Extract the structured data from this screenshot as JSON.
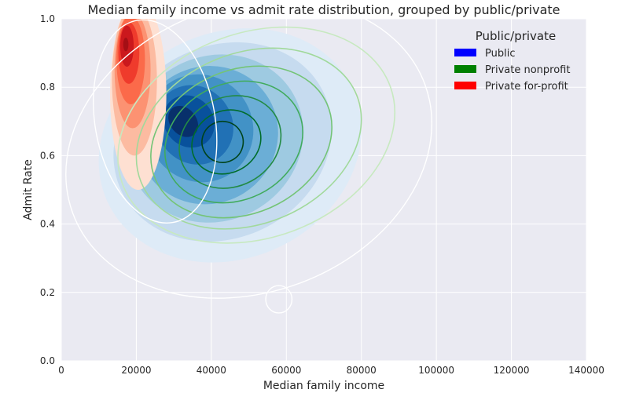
{
  "chart_data": {
    "type": "kde-contour",
    "title": "Median family income vs admit rate distribution, grouped by public/private",
    "xlabel": "Median family income",
    "ylabel": "Admit Rate",
    "xlim": [
      0,
      140000
    ],
    "ylim": [
      0.0,
      1.0
    ],
    "x_ticks": [
      0,
      20000,
      40000,
      60000,
      80000,
      100000,
      120000,
      140000
    ],
    "y_ticks": [
      0.0,
      0.2,
      0.4,
      0.6,
      0.8,
      1.0
    ],
    "x_tick_labels": [
      "0",
      "20000",
      "40000",
      "60000",
      "80000",
      "100000",
      "120000",
      "140000"
    ],
    "y_tick_labels": [
      "0.0",
      "0.2",
      "0.4",
      "0.6",
      "0.8",
      "1.0"
    ],
    "grid": true,
    "legend": {
      "title": "Public/private",
      "placement": "top-right",
      "entries": [
        {
          "label": "Public",
          "color": "#0000ff"
        },
        {
          "label": "Private nonprofit",
          "color": "#008000"
        },
        {
          "label": "Private for-profit",
          "color": "#ff0000"
        }
      ]
    },
    "series": [
      {
        "name": "Public",
        "style": "filled",
        "palette": [
          "#deebf7",
          "#c6dbef",
          "#9ecae1",
          "#6baed6",
          "#4292c6",
          "#2171b5",
          "#08519c",
          "#08306b"
        ],
        "levels": [
          {
            "cx": 45000,
            "cy": 0.63,
            "rx": 36000,
            "ry": 0.33,
            "rot": -25
          },
          {
            "cx": 43000,
            "cy": 0.64,
            "rx": 30000,
            "ry": 0.28,
            "rot": -28
          },
          {
            "cx": 41000,
            "cy": 0.65,
            "rx": 24000,
            "ry": 0.24,
            "rot": -30
          },
          {
            "cx": 39000,
            "cy": 0.66,
            "rx": 19000,
            "ry": 0.2,
            "rot": -32
          },
          {
            "cx": 37000,
            "cy": 0.68,
            "rx": 14000,
            "ry": 0.16,
            "rot": -35
          },
          {
            "cx": 35500,
            "cy": 0.69,
            "rx": 10000,
            "ry": 0.12,
            "rot": -38
          },
          {
            "cx": 34000,
            "cy": 0.7,
            "rx": 6500,
            "ry": 0.08,
            "rot": -40
          },
          {
            "cx": 32500,
            "cy": 0.7,
            "rx": 3500,
            "ry": 0.05,
            "rot": -40
          }
        ]
      },
      {
        "name": "Private nonprofit",
        "style": "lines",
        "palette": [
          "#c7e9c0",
          "#a1d99b",
          "#74c476",
          "#41ab5d",
          "#238b45",
          "#006d2c",
          "#00441b"
        ],
        "levels": [
          {
            "cx": 52000,
            "cy": 0.66,
            "rx": 38000,
            "ry": 0.3,
            "rot": -20
          },
          {
            "cx": 50000,
            "cy": 0.65,
            "rx": 31000,
            "ry": 0.25,
            "rot": -22
          },
          {
            "cx": 48000,
            "cy": 0.64,
            "rx": 25000,
            "ry": 0.21,
            "rot": -24
          },
          {
            "cx": 46000,
            "cy": 0.64,
            "rx": 19000,
            "ry": 0.17,
            "rot": -26
          },
          {
            "cx": 45000,
            "cy": 0.64,
            "rx": 14000,
            "ry": 0.13,
            "rot": -28
          },
          {
            "cx": 44000,
            "cy": 0.64,
            "rx": 9500,
            "ry": 0.09,
            "rot": -30
          },
          {
            "cx": 43000,
            "cy": 0.64,
            "rx": 5500,
            "ry": 0.06,
            "rot": -30
          }
        ]
      },
      {
        "name": "Private for-profit",
        "style": "filled",
        "palette": [
          "#fee0d2",
          "#fcbba1",
          "#fc9272",
          "#fb6a4a",
          "#ef3b2c",
          "#cb181d",
          "#a50f15"
        ],
        "levels": [
          {
            "cx": 20500,
            "cy": 0.78,
            "rx": 7500,
            "ry": 0.28,
            "rot": 0
          },
          {
            "cx": 19500,
            "cy": 0.82,
            "rx": 6000,
            "ry": 0.22,
            "rot": 0
          },
          {
            "cx": 19000,
            "cy": 0.85,
            "rx": 4800,
            "ry": 0.17,
            "rot": 0
          },
          {
            "cx": 18500,
            "cy": 0.88,
            "rx": 3800,
            "ry": 0.13,
            "rot": 0
          },
          {
            "cx": 18000,
            "cy": 0.9,
            "rx": 2800,
            "ry": 0.09,
            "rot": 0
          },
          {
            "cx": 17500,
            "cy": 0.92,
            "rx": 1800,
            "ry": 0.06,
            "rot": 0
          },
          {
            "cx": 17200,
            "cy": 0.925,
            "rx": 700,
            "ry": 0.02,
            "rot": 0
          }
        ]
      },
      {
        "name": "",
        "style": "outline",
        "palette": [
          "#ffffff"
        ],
        "levels": [
          {
            "cx": 50000,
            "cy": 0.62,
            "rx": 50000,
            "ry": 0.42,
            "rot": -20
          },
          {
            "cx": 58000,
            "cy": 0.18,
            "rx": 3500,
            "ry": 0.04,
            "rot": 0
          },
          {
            "cx": 25000,
            "cy": 0.7,
            "rx": 16000,
            "ry": 0.3,
            "rot": -10
          }
        ]
      }
    ]
  }
}
